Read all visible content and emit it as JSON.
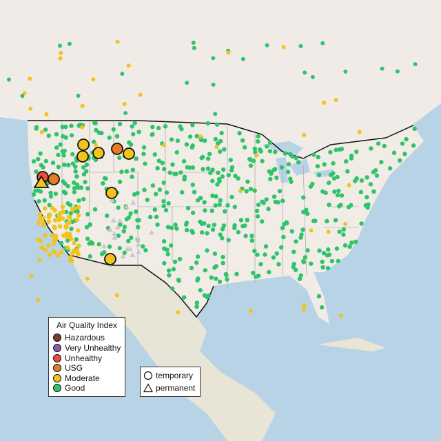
{
  "legend": {
    "title": "Air Quality Index",
    "categories": [
      {
        "label": "Hazardous",
        "color": "#7e3b2a"
      },
      {
        "label": "Very Unhealthy",
        "color": "#8c5ab4"
      },
      {
        "label": "Unhealthy",
        "color": "#e8503c"
      },
      {
        "label": "USG",
        "color": "#e57b22"
      },
      {
        "label": "Moderate",
        "color": "#f2c31a"
      },
      {
        "label": "Good",
        "color": "#2fc36b"
      }
    ],
    "types": [
      {
        "label": "temporary",
        "shape": "circle"
      },
      {
        "label": "permanent",
        "shape": "triangle"
      }
    ]
  },
  "colors": {
    "ocean": "#b9d3e6",
    "land": "#f1ece6",
    "mexico_land": "#e9e5d6",
    "canada_land": "#f0ebe7",
    "state_lines": "#9a9a9a",
    "country_border": "#111111",
    "no_data": "#c9c9c9"
  }
}
